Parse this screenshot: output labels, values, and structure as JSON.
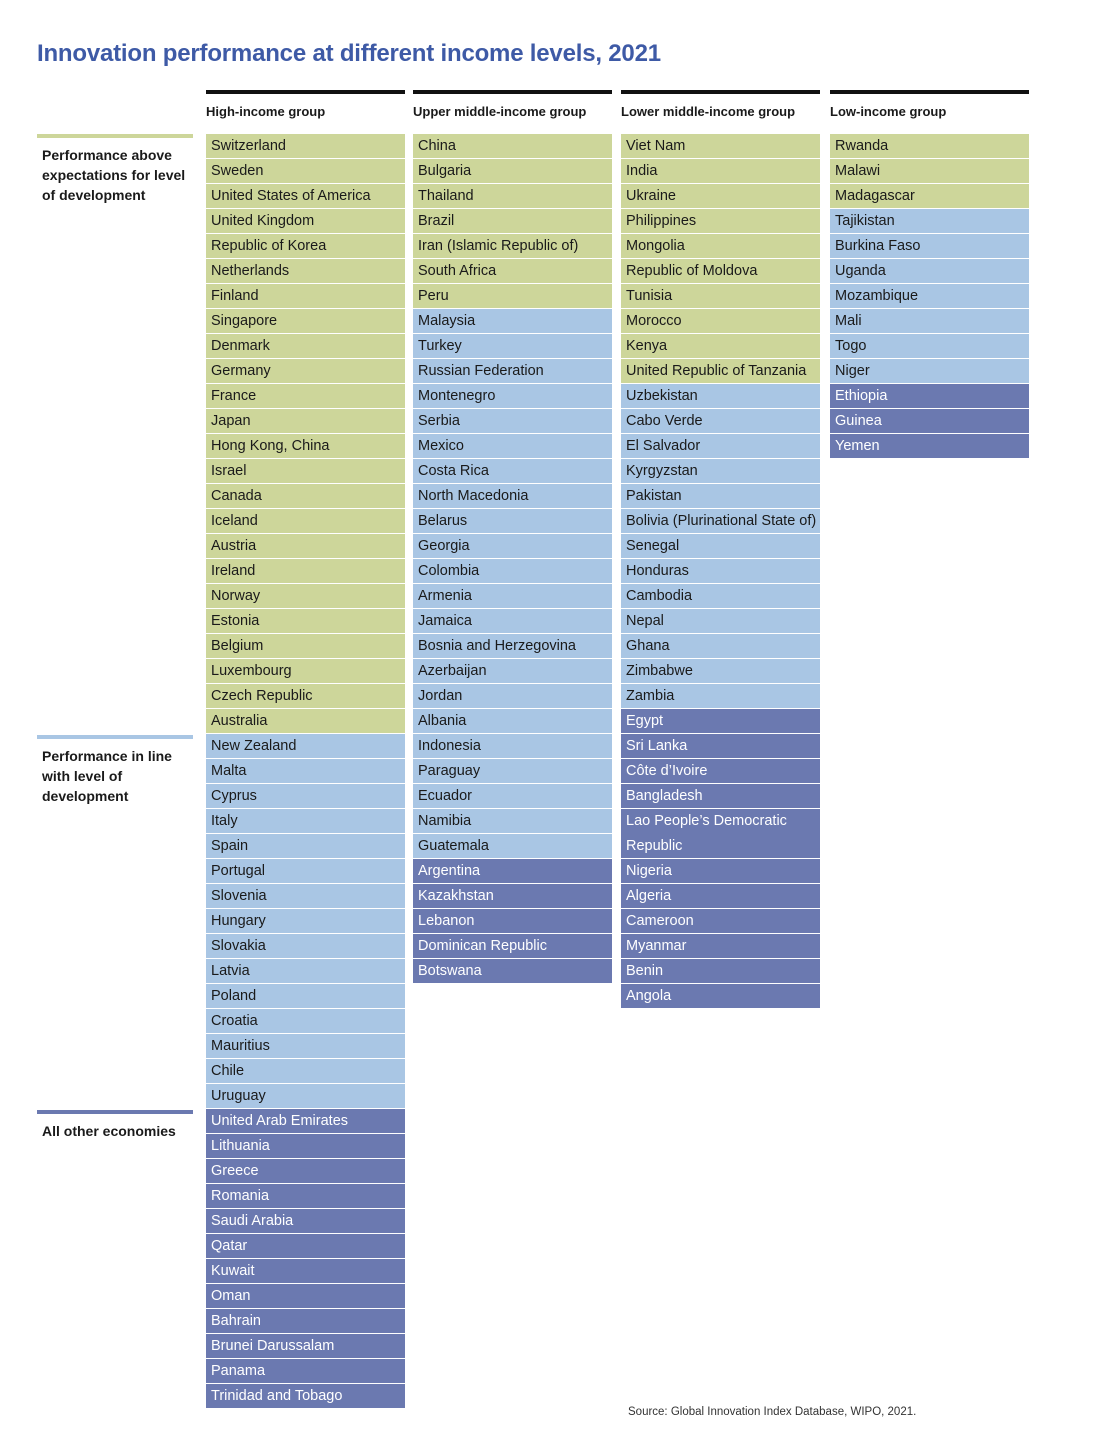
{
  "title": "Innovation performance at different income levels, 2021",
  "legend": {
    "above": "Performance above expectations for level of development",
    "inline": "Performance in line with level of development",
    "other": "All other economies"
  },
  "colors": {
    "above": "#cdd69a",
    "inline": "#a9c6e4",
    "other": "#6b79b0",
    "title": "#3e5aa6"
  },
  "groups": [
    {
      "label": "High-income group",
      "above": [
        "Switzerland",
        "Sweden",
        "United States of America",
        "United Kingdom",
        "Republic of Korea",
        "Netherlands",
        "Finland",
        "Singapore",
        "Denmark",
        "Germany",
        "France",
        "Japan",
        "Hong Kong, China",
        "Israel",
        "Canada",
        "Iceland",
        "Austria",
        "Ireland",
        "Norway",
        "Estonia",
        "Belgium",
        "Luxembourg",
        "Czech Republic",
        "Australia"
      ],
      "inline": [
        "New Zealand",
        "Malta",
        "Cyprus",
        "Italy",
        "Spain",
        "Portugal",
        "Slovenia",
        "Hungary",
        "Slovakia",
        "Latvia",
        "Poland",
        "Croatia",
        "Mauritius",
        "Chile",
        "Uruguay"
      ],
      "other": [
        "United Arab Emirates",
        "Lithuania",
        "Greece",
        "Romania",
        "Saudi Arabia",
        "Qatar",
        "Kuwait",
        "Oman",
        "Bahrain",
        "Brunei Darussalam",
        "Panama",
        "Trinidad and Tobago"
      ]
    },
    {
      "label": "Upper middle-income group",
      "above": [
        "China",
        "Bulgaria",
        "Thailand",
        "Brazil",
        "Iran (Islamic Republic of)",
        "South Africa",
        "Peru"
      ],
      "inline": [
        "Malaysia",
        "Turkey",
        "Russian Federation",
        "Montenegro",
        "Serbia",
        "Mexico",
        "Costa Rica",
        "North Macedonia",
        "Belarus",
        "Georgia",
        "Colombia",
        "Armenia",
        "Jamaica",
        "Bosnia and Herzegovina",
        "Azerbaijan",
        "Jordan",
        "Albania",
        "Indonesia",
        "Paraguay",
        "Ecuador",
        "Namibia",
        "Guatemala"
      ],
      "other": [
        "Argentina",
        "Kazakhstan",
        "Lebanon",
        "Dominican Republic",
        "Botswana"
      ]
    },
    {
      "label": "Lower middle-income group",
      "above": [
        "Viet Nam",
        "India",
        "Ukraine",
        "Philippines",
        "Mongolia",
        "Republic of Moldova",
        "Tunisia",
        "Morocco",
        "Kenya",
        "United Republic of Tanzania"
      ],
      "inline": [
        "Uzbekistan",
        "Cabo Verde",
        "El Salvador",
        "Kyrgyzstan",
        "Pakistan",
        "Bolivia (Plurinational State of)",
        "Senegal",
        "Honduras",
        "Cambodia",
        "Nepal",
        "Ghana",
        "Zimbabwe",
        "Zambia"
      ],
      "other": [
        "Egypt",
        "Sri Lanka",
        "Côte d’Ivoire",
        "Bangladesh",
        "Lao People’s Democratic Republic",
        "Nigeria",
        "Algeria",
        "Cameroon",
        "Myanmar",
        "Benin",
        "Angola"
      ]
    },
    {
      "label": "Low-income group",
      "above": [
        "Rwanda",
        "Malawi",
        "Madagascar"
      ],
      "inline": [
        "Tajikistan",
        "Burkina Faso",
        "Uganda",
        "Mozambique",
        "Mali",
        "Togo",
        "Niger"
      ],
      "other": [
        "Ethiopia",
        "Guinea",
        "Yemen"
      ]
    }
  ],
  "source": "Source: Global Innovation Index Database, WIPO, 2021."
}
